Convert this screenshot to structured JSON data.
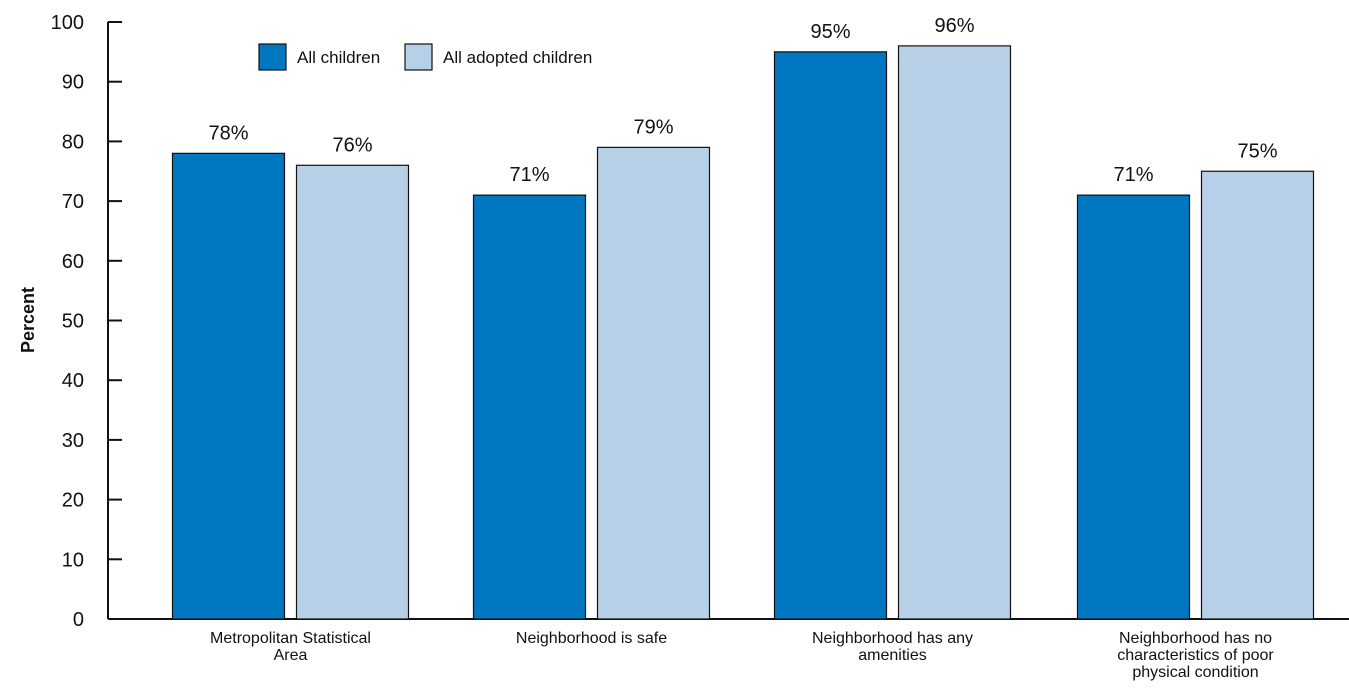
{
  "chart_data": {
    "type": "bar",
    "title": "",
    "xlabel": "",
    "ylabel": "Percent",
    "ylim": [
      0,
      100
    ],
    "yticks": [
      0,
      10,
      20,
      30,
      40,
      50,
      60,
      70,
      80,
      90,
      100
    ],
    "grid": false,
    "legend_position": "top-left",
    "categories": [
      "Metropolitan Statistical Area",
      "Neighborhood is safe",
      "Neighborhood has any amenities",
      "Neighborhood has no characteristics of poor physical condition"
    ],
    "category_label_lines": [
      [
        "Metropolitan Statistical",
        "Area"
      ],
      [
        "Neighborhood is safe"
      ],
      [
        "Neighborhood has any",
        "amenities"
      ],
      [
        "Neighborhood has no",
        "characteristics of poor",
        "physical condition"
      ]
    ],
    "series": [
      {
        "name": "All children",
        "color": "#0077c0",
        "values": [
          78,
          71,
          95,
          71
        ],
        "labels": [
          "78%",
          "71%",
          "95%",
          "71%"
        ]
      },
      {
        "name": "All adopted children",
        "color": "#b8cfe8",
        "values": [
          76,
          79,
          96,
          75
        ],
        "labels": [
          "76%",
          "79%",
          "96%",
          "75%"
        ]
      }
    ]
  }
}
